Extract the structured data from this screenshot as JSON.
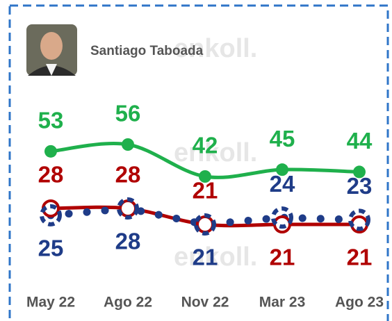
{
  "chart_data": {
    "type": "line",
    "title": "Santiago Taboada",
    "watermark": "enkoll.",
    "categories": [
      "May 22",
      "Ago 22",
      "Nov 22",
      "Mar 23",
      "Ago 23"
    ],
    "series": [
      {
        "color": "#1fb04c",
        "values": [
          53,
          56,
          42,
          45,
          44
        ]
      },
      {
        "color": "#b00000",
        "values": [
          28,
          28,
          21,
          21,
          21
        ]
      },
      {
        "color": "#1f3c88",
        "values": [
          25,
          28,
          21,
          24,
          23
        ]
      }
    ]
  }
}
